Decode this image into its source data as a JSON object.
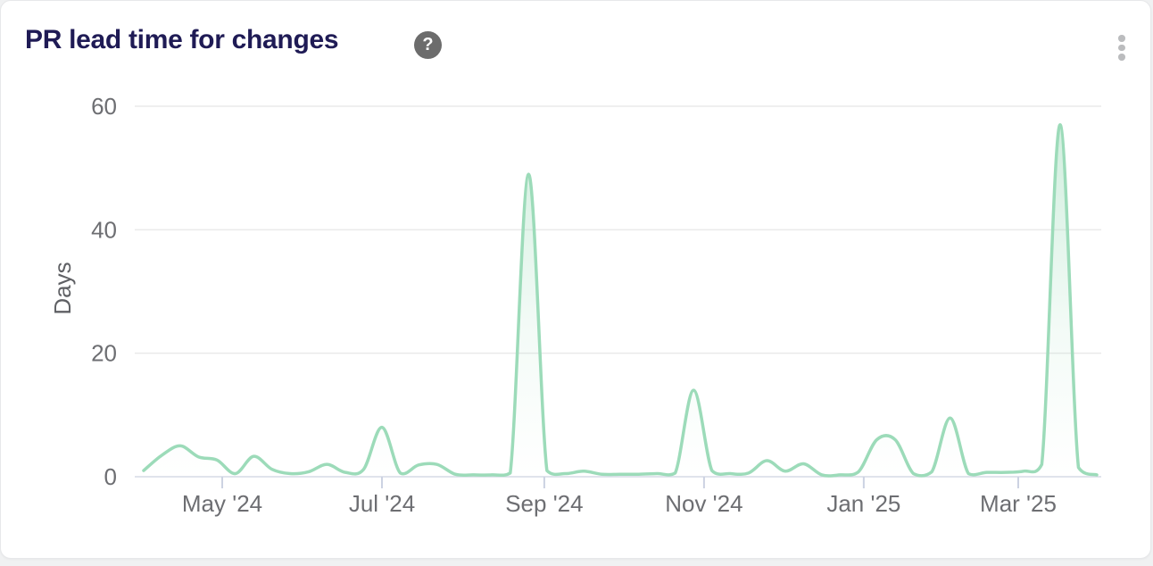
{
  "card": {
    "title": "PR lead time for changes",
    "help_glyph": "?"
  },
  "chart_data": {
    "type": "area",
    "title": "PR lead time for changes",
    "xlabel": "",
    "ylabel": "Days",
    "ylim": [
      0,
      60
    ],
    "yticks": [
      0,
      20,
      40,
      60
    ],
    "grid": true,
    "legend": false,
    "line_color": "#9cdbb9",
    "fill_color": "#9cdbb9",
    "grid_color": "#eaeaea",
    "baseline_color": "#d6dae6",
    "tick_color": "#ccd2e2",
    "axis_text_color": "#6d6e72",
    "xticks": [
      {
        "label": "May '24",
        "date": "2024-05-01"
      },
      {
        "label": "Jul '24",
        "date": "2024-07-01"
      },
      {
        "label": "Sep '24",
        "date": "2024-09-01"
      },
      {
        "label": "Nov '24",
        "date": "2024-11-01"
      },
      {
        "label": "Jan '25",
        "date": "2025-01-01"
      },
      {
        "label": "Mar '25",
        "date": "2025-03-01"
      }
    ],
    "x": [
      "2024-04-01",
      "2024-04-08",
      "2024-04-15",
      "2024-04-22",
      "2024-04-29",
      "2024-05-06",
      "2024-05-13",
      "2024-05-20",
      "2024-05-27",
      "2024-06-03",
      "2024-06-10",
      "2024-06-17",
      "2024-06-24",
      "2024-07-01",
      "2024-07-08",
      "2024-07-15",
      "2024-07-22",
      "2024-07-29",
      "2024-08-05",
      "2024-08-12",
      "2024-08-19",
      "2024-08-26",
      "2024-09-02",
      "2024-09-09",
      "2024-09-16",
      "2024-09-23",
      "2024-09-30",
      "2024-10-07",
      "2024-10-14",
      "2024-10-21",
      "2024-10-28",
      "2024-11-04",
      "2024-11-11",
      "2024-11-18",
      "2024-11-25",
      "2024-12-02",
      "2024-12-09",
      "2024-12-16",
      "2024-12-23",
      "2024-12-30",
      "2025-01-06",
      "2025-01-13",
      "2025-01-20",
      "2025-01-27",
      "2025-02-03",
      "2025-02-10",
      "2025-02-17",
      "2025-02-24",
      "2025-03-03",
      "2025-03-10",
      "2025-03-17",
      "2025-03-24",
      "2025-03-31"
    ],
    "values": [
      1,
      3.5,
      5,
      3.2,
      2.7,
      0.5,
      3.3,
      1.2,
      0.5,
      0.8,
      2,
      0.7,
      1.2,
      8,
      0.6,
      1.9,
      2,
      0.4,
      0.3,
      0.3,
      0.6,
      49,
      1,
      0.5,
      0.9,
      0.4,
      0.4,
      0.4,
      0.5,
      0.6,
      14,
      1,
      0.5,
      0.6,
      2.6,
      0.9,
      2.1,
      0.3,
      0.3,
      0.8,
      6,
      6,
      0.5,
      0.8,
      9.5,
      0.5,
      0.7,
      0.7,
      0.9,
      2,
      57,
      1.5,
      0.3
    ]
  }
}
